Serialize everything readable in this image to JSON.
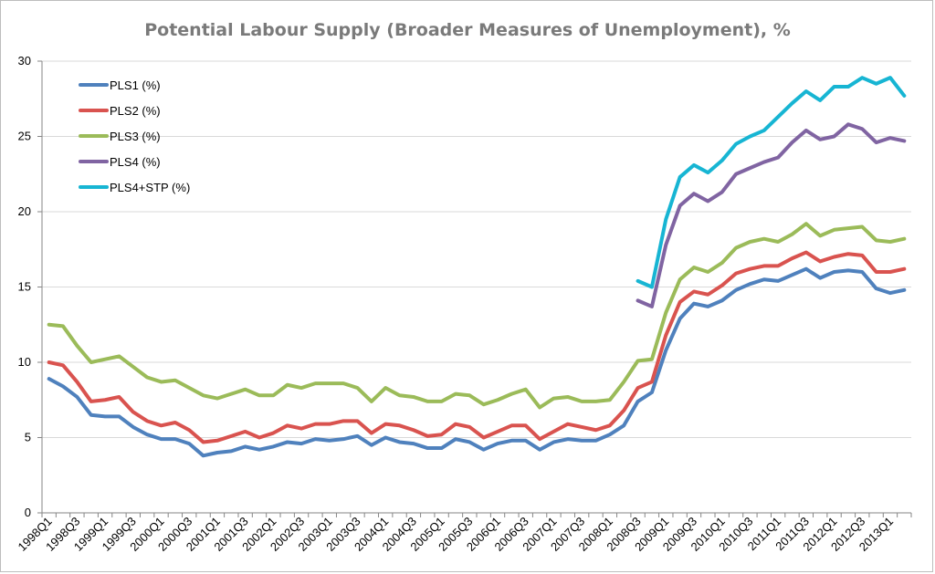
{
  "chart_data": {
    "type": "line",
    "title": "Potential Labour Supply (Broader Measures of Unemployment), %",
    "xlabel": "",
    "ylabel": "",
    "ylim": [
      0,
      30
    ],
    "yticks": [
      0,
      5,
      10,
      15,
      20,
      25,
      30
    ],
    "grid": true,
    "legend_position": "top-left",
    "x": [
      "1998Q1",
      "1998Q2",
      "1998Q3",
      "1998Q4",
      "1999Q1",
      "1999Q2",
      "1999Q3",
      "1999Q4",
      "2000Q1",
      "2000Q2",
      "2000Q3",
      "2000Q4",
      "2001Q1",
      "2001Q2",
      "2001Q3",
      "2001Q4",
      "2002Q1",
      "2002Q2",
      "2002Q3",
      "2002Q4",
      "2003Q1",
      "2003Q2",
      "2003Q3",
      "2003Q4",
      "2004Q1",
      "2004Q2",
      "2004Q3",
      "2004Q4",
      "2005Q1",
      "2005Q2",
      "2005Q3",
      "2005Q4",
      "2006Q1",
      "2006Q2",
      "2006Q3",
      "2006Q4",
      "2007Q1",
      "2007Q2",
      "2007Q3",
      "2007Q4",
      "2008Q1",
      "2008Q2",
      "2008Q3",
      "2008Q4",
      "2009Q1",
      "2009Q2",
      "2009Q3",
      "2009Q4",
      "2010Q1",
      "2010Q2",
      "2010Q3",
      "2010Q4",
      "2011Q1",
      "2011Q2",
      "2011Q3",
      "2011Q4",
      "2012Q1",
      "2012Q2",
      "2012Q3",
      "2012Q4",
      "2013Q1",
      "2013Q2"
    ],
    "tick_labels": [
      "1998Q1",
      "1998Q3",
      "1999Q1",
      "1999Q3",
      "2000Q1",
      "2000Q3",
      "2001Q1",
      "2001Q3",
      "2002Q1",
      "2002Q3",
      "2003Q1",
      "2003Q3",
      "2004Q1",
      "2004Q3",
      "2005Q1",
      "2005Q3",
      "2006Q1",
      "2006Q3",
      "2007Q1",
      "2007Q3",
      "2008Q1",
      "2008Q3",
      "2009Q1",
      "2009Q3",
      "2010Q1",
      "2010Q3",
      "2011Q1",
      "2011Q3",
      "2012Q1",
      "2012Q3",
      "2013Q1"
    ],
    "series": [
      {
        "name": "PLS1 (%)",
        "color": "#4f81bd",
        "values": [
          8.9,
          8.4,
          7.7,
          6.5,
          6.4,
          6.4,
          5.7,
          5.2,
          4.9,
          4.9,
          4.6,
          3.8,
          4.0,
          4.1,
          4.4,
          4.2,
          4.4,
          4.7,
          4.6,
          4.9,
          4.8,
          4.9,
          5.1,
          4.5,
          5.0,
          4.7,
          4.6,
          4.3,
          4.3,
          4.9,
          4.7,
          4.2,
          4.6,
          4.8,
          4.8,
          4.2,
          4.7,
          4.9,
          4.8,
          4.8,
          5.2,
          5.8,
          7.4,
          8.0,
          10.8,
          12.9,
          13.9,
          13.7,
          14.1,
          14.8,
          15.2,
          15.5,
          15.4,
          15.8,
          16.2,
          15.6,
          16.0,
          16.1,
          16.0,
          14.9,
          14.6,
          14.8
        ]
      },
      {
        "name": "PLS2 (%)",
        "color": "#d9534f",
        "values": [
          10.0,
          9.8,
          8.7,
          7.4,
          7.5,
          7.7,
          6.7,
          6.1,
          5.8,
          6.0,
          5.5,
          4.7,
          4.8,
          5.1,
          5.4,
          5.0,
          5.3,
          5.8,
          5.6,
          5.9,
          5.9,
          6.1,
          6.1,
          5.3,
          5.9,
          5.8,
          5.5,
          5.1,
          5.2,
          5.9,
          5.7,
          5.0,
          5.4,
          5.8,
          5.8,
          4.9,
          5.4,
          5.9,
          5.7,
          5.5,
          5.8,
          6.8,
          8.3,
          8.7,
          11.8,
          14.0,
          14.7,
          14.5,
          15.1,
          15.9,
          16.2,
          16.4,
          16.4,
          16.9,
          17.3,
          16.7,
          17.0,
          17.2,
          17.1,
          16.0,
          16.0,
          16.2
        ]
      },
      {
        "name": "PLS3 (%)",
        "color": "#9bbb59",
        "values": [
          12.5,
          12.4,
          11.1,
          10.0,
          10.2,
          10.4,
          9.7,
          9.0,
          8.7,
          8.8,
          8.3,
          7.8,
          7.6,
          7.9,
          8.2,
          7.8,
          7.8,
          8.5,
          8.3,
          8.6,
          8.6,
          8.6,
          8.3,
          7.4,
          8.3,
          7.8,
          7.7,
          7.4,
          7.4,
          7.9,
          7.8,
          7.2,
          7.5,
          7.9,
          8.2,
          7.0,
          7.6,
          7.7,
          7.4,
          7.4,
          7.5,
          8.7,
          10.1,
          10.2,
          13.3,
          15.5,
          16.3,
          16.0,
          16.6,
          17.6,
          18.0,
          18.2,
          18.0,
          18.5,
          19.2,
          18.4,
          18.8,
          18.9,
          19.0,
          18.1,
          18.0,
          18.2
        ]
      },
      {
        "name": "PLS4 (%)",
        "color": "#8064a2",
        "values": [
          null,
          null,
          null,
          null,
          null,
          null,
          null,
          null,
          null,
          null,
          null,
          null,
          null,
          null,
          null,
          null,
          null,
          null,
          null,
          null,
          null,
          null,
          null,
          null,
          null,
          null,
          null,
          null,
          null,
          null,
          null,
          null,
          null,
          null,
          null,
          null,
          null,
          null,
          null,
          null,
          null,
          null,
          14.1,
          13.7,
          17.8,
          20.4,
          21.2,
          20.7,
          21.3,
          22.5,
          22.9,
          23.3,
          23.6,
          24.6,
          25.4,
          24.8,
          25.0,
          25.8,
          25.5,
          24.6,
          24.9,
          24.7
        ]
      },
      {
        "name": "PLS4+STP (%)",
        "color": "#17b5d3",
        "values": [
          null,
          null,
          null,
          null,
          null,
          null,
          null,
          null,
          null,
          null,
          null,
          null,
          null,
          null,
          null,
          null,
          null,
          null,
          null,
          null,
          null,
          null,
          null,
          null,
          null,
          null,
          null,
          null,
          null,
          null,
          null,
          null,
          null,
          null,
          null,
          null,
          null,
          null,
          null,
          null,
          null,
          null,
          15.4,
          15.0,
          19.5,
          22.3,
          23.1,
          22.6,
          23.4,
          24.5,
          25.0,
          25.4,
          26.3,
          27.2,
          28.0,
          27.4,
          28.3,
          28.3,
          28.9,
          28.5,
          28.9,
          27.7
        ]
      }
    ]
  }
}
